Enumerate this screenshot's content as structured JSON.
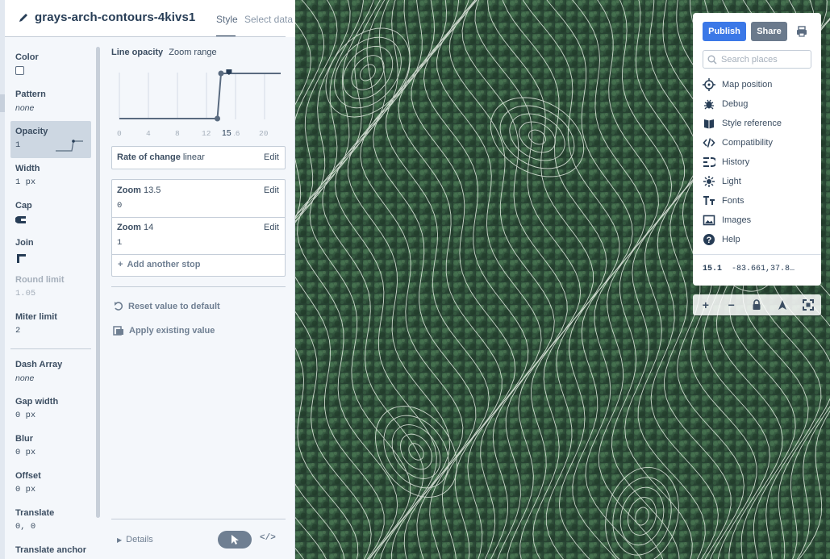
{
  "header": {
    "layer_id": "grays-arch-contours-4kivs1",
    "tabs": [
      "Style",
      "Select data"
    ],
    "active_tab": "Style"
  },
  "properties": [
    {
      "name": "Color",
      "value": "",
      "kind": "color"
    },
    {
      "name": "Pattern",
      "value": "none",
      "kind": "italic"
    },
    {
      "name": "Opacity",
      "value": "1",
      "kind": "mono",
      "active": true
    },
    {
      "name": "Width",
      "value": "1 px",
      "kind": "mono"
    },
    {
      "name": "Cap",
      "value": "",
      "kind": "cap-icon"
    },
    {
      "name": "Join",
      "value": "",
      "kind": "join-icon"
    },
    {
      "name": "Round limit",
      "value": "1.05",
      "kind": "mono",
      "disabled": true
    },
    {
      "name": "Miter limit",
      "value": "2",
      "kind": "mono"
    },
    {
      "name": "Dash Array",
      "value": "none",
      "kind": "italic"
    },
    {
      "name": "Gap width",
      "value": "0 px",
      "kind": "mono"
    },
    {
      "name": "Blur",
      "value": "0 px",
      "kind": "mono"
    },
    {
      "name": "Offset",
      "value": "0 px",
      "kind": "mono"
    },
    {
      "name": "Translate",
      "value": "0, 0",
      "kind": "mono"
    },
    {
      "name": "Translate anchor",
      "value": "",
      "kind": "mono"
    }
  ],
  "editor": {
    "title": "Line opacity",
    "mode": "Zoom range",
    "axis_ticks": [
      "0",
      "4",
      "8",
      "12",
      "16",
      "20"
    ],
    "current_zoom": "15",
    "current_zoom_value": 15.1,
    "stops": [
      {
        "label": "Zoom",
        "zoom": "13.5",
        "value": "0"
      },
      {
        "label": "Zoom",
        "zoom": "14",
        "value": "1"
      }
    ],
    "rate_label": "Rate of change",
    "rate_value": "linear",
    "edit_label": "Edit",
    "add_stop": "Add another stop",
    "reset": "Reset value to default",
    "apply_existing": "Apply existing value",
    "details": "Details",
    "code_toggle": "</>"
  },
  "tools": {
    "publish": "Publish",
    "share": "Share",
    "search_placeholder": "Search places",
    "menu": [
      {
        "label": "Map position",
        "icon": "crosshair-icon"
      },
      {
        "label": "Debug",
        "icon": "bug-icon"
      },
      {
        "label": "Style reference",
        "icon": "book-icon"
      },
      {
        "label": "Compatibility",
        "icon": "code-icon"
      },
      {
        "label": "History",
        "icon": "history-icon"
      },
      {
        "label": "Light",
        "icon": "light-icon"
      },
      {
        "label": "Fonts",
        "icon": "fonts-icon"
      },
      {
        "label": "Images",
        "icon": "image-icon"
      },
      {
        "label": "Help",
        "icon": "help-icon"
      }
    ],
    "zoom_readout": "15.1",
    "coords_readout": "-83.661,37.8…"
  },
  "map_controls": [
    "+",
    "−",
    "🔒",
    "A",
    "⛶"
  ],
  "colors": {
    "accent": "#3b78e7",
    "share": "#6b7a8c",
    "panel_bg": "#f4f7fb",
    "text": "#273d56"
  }
}
